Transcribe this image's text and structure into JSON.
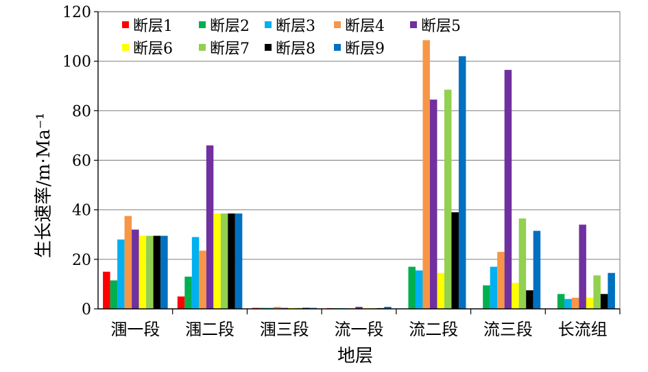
{
  "chart_data": {
    "type": "bar",
    "title": "",
    "xlabel": "地层",
    "ylabel": "生长速率/m·Ma⁻¹",
    "ylim": [
      0,
      120
    ],
    "yticks": [
      0,
      20,
      40,
      60,
      80,
      100,
      120
    ],
    "grid": true,
    "legend_position": "top-left",
    "categories": [
      "涠一段",
      "涠二段",
      "涠三段",
      "流一段",
      "流二段",
      "流三段",
      "长流组"
    ],
    "series": [
      {
        "name": "断层1",
        "color": "#ff0000",
        "values": [
          15,
          5,
          0.4,
          0.3,
          0,
          0,
          0
        ]
      },
      {
        "name": "断层2",
        "color": "#00b050",
        "values": [
          11.5,
          13,
          0.4,
          0.3,
          17,
          9.5,
          6
        ]
      },
      {
        "name": "断层3",
        "color": "#00b0f0",
        "values": [
          28,
          29,
          0.4,
          0.3,
          15.5,
          17,
          4
        ]
      },
      {
        "name": "断层4",
        "color": "#f79646",
        "values": [
          37.5,
          23.5,
          0.8,
          0.3,
          108.5,
          23,
          4.5
        ]
      },
      {
        "name": "断层5",
        "color": "#7030a0",
        "values": [
          32,
          66,
          0.4,
          0.8,
          84.5,
          96.5,
          34
        ]
      },
      {
        "name": "断层6",
        "color": "#ffff00",
        "values": [
          29.5,
          38.5,
          0.4,
          0.3,
          14.5,
          10.5,
          4.5
        ]
      },
      {
        "name": "断层7",
        "color": "#92d050",
        "values": [
          29.5,
          38.5,
          0.4,
          0.3,
          88.5,
          36.5,
          13.5
        ]
      },
      {
        "name": "断层8",
        "color": "#000000",
        "values": [
          29.5,
          38.5,
          0.4,
          0.3,
          39,
          7.5,
          6
        ]
      },
      {
        "name": "断层9",
        "color": "#0070c0",
        "values": [
          29.5,
          38.5,
          0.4,
          0.8,
          102,
          31.5,
          14.5
        ]
      }
    ]
  }
}
